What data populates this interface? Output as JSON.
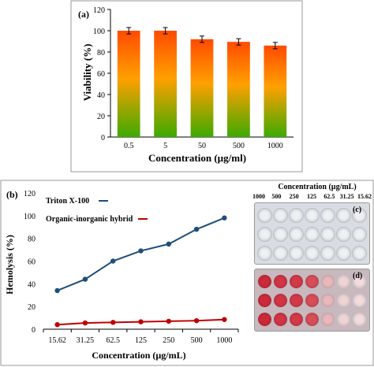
{
  "chart_data": [
    {
      "panel": "(a)",
      "type": "bar",
      "xlabel": "Concentration (µg/ml)",
      "ylabel": "Viability (%)",
      "categories": [
        "0.5",
        "5",
        "50",
        "500",
        "1000"
      ],
      "values": [
        100,
        100,
        92,
        89.5,
        86
      ],
      "errors": [
        3,
        3,
        3,
        3,
        3
      ],
      "ylim": [
        0,
        120
      ],
      "yticks": [
        "0",
        "20",
        "40",
        "60",
        "80",
        "100",
        "120"
      ],
      "bar_gradient": {
        "top": "#ff4a00",
        "middle": "#ffa000",
        "bottom": "#3caa00"
      }
    },
    {
      "panel": "(b)",
      "type": "line",
      "xlabel": "Concentration (µg/mL)",
      "ylabel": "Hemolysis (%)",
      "categories": [
        "15.62",
        "31.25",
        "62.5",
        "125",
        "250",
        "500",
        "1000"
      ],
      "ylim": [
        0,
        120
      ],
      "yticks": [
        "0",
        "20",
        "40",
        "60",
        "80",
        "100",
        "120"
      ],
      "series": [
        {
          "name": "Triton X-100",
          "color": "#1f4e79",
          "values": [
            34,
            44,
            60,
            69,
            75,
            88,
            98
          ]
        },
        {
          "name": "Organic-inorganic hybrid",
          "color": "#c00000",
          "values": [
            4,
            5.5,
            6,
            6.5,
            7,
            7.5,
            8.5
          ]
        }
      ]
    }
  ],
  "plate": {
    "title": "Concentration (µg/mL)",
    "columns": [
      "1000",
      "500",
      "250",
      "125",
      "62.5",
      "31.25",
      "15.62"
    ],
    "top_label": "(c)",
    "bottom_label": "(d)",
    "well_colors_bottom": [
      "#cc2a3a",
      "#d23545",
      "#d33a48",
      "#d84e58",
      "#e8b8bc",
      "#efd4d6",
      "#f2dcdd"
    ]
  }
}
